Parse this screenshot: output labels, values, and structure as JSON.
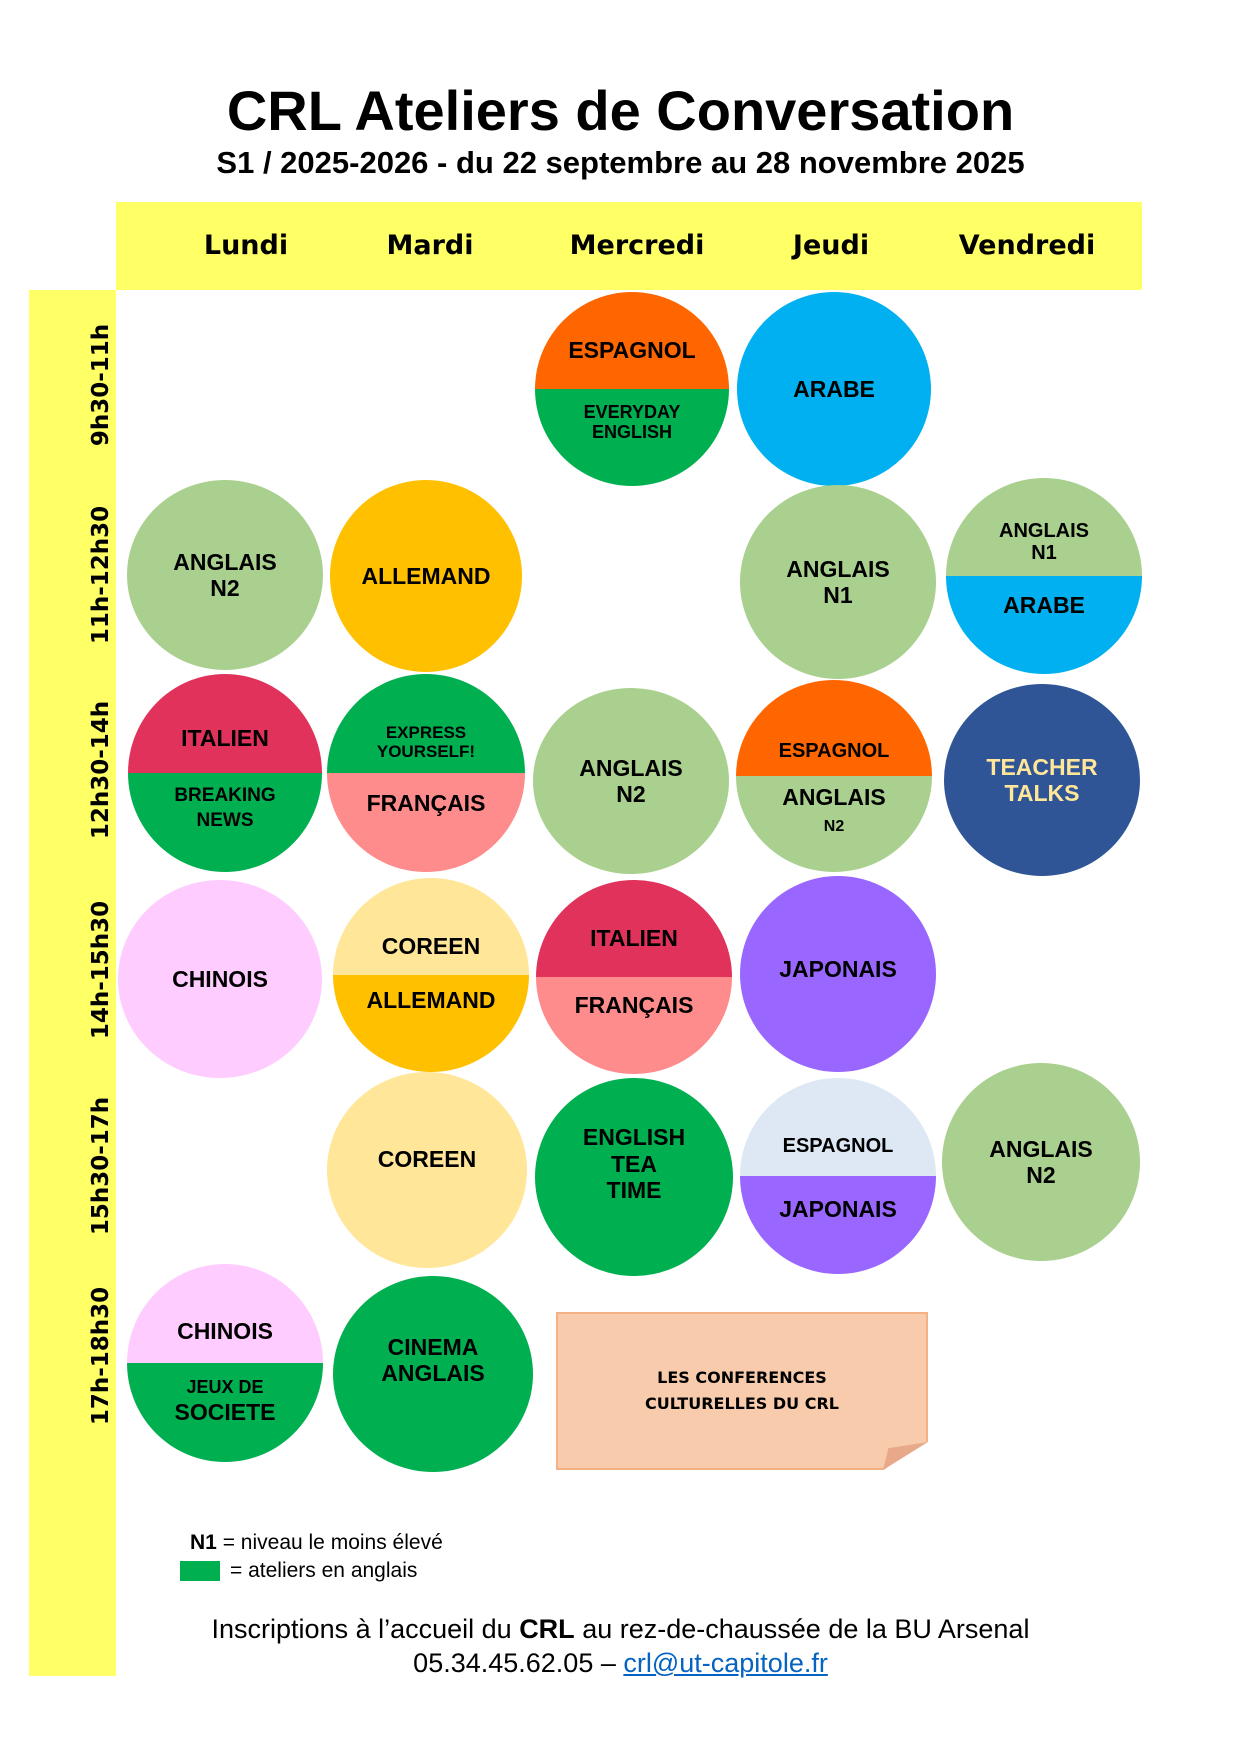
{
  "header": {
    "title": "CRL Ateliers de Conversation",
    "subtitle": "S1 / 2025-2026 - du 22 septembre au 28 novembre 2025"
  },
  "days": [
    "Lundi",
    "Mardi",
    "Mercredi",
    "Jeudi",
    "Vendredi"
  ],
  "time_slots": [
    "9h30-11h",
    "11h-12h30",
    "12h30-14h",
    "14h-15h30",
    "15h30-17h",
    "17h-18h30"
  ],
  "colors": {
    "highlight_yellow": "#ffff66",
    "anglais": "#a9d08e",
    "english_workshop": "#00b050",
    "espagnol": "#ff6600",
    "espagnol_light": "#dde8f4",
    "arabe": "#00b0f0",
    "allemand": "#ffc000",
    "italien": "#e0325a",
    "francais": "#ff8c8c",
    "chinois_fill": "#ffccff",
    "coreen": "#ffe699",
    "japonais": "#9966ff",
    "teacher_talks_fill": "#2f5597",
    "teacher_talks_text": "#ffe699",
    "note": "#f8cbad"
  },
  "schedule": [
    {
      "day": "Mercredi",
      "slot": "9h30-11h",
      "top": "ESPAGNOL",
      "bottom": "EVERYDAY\nENGLISH"
    },
    {
      "day": "Jeudi",
      "slot": "9h30-11h",
      "label": "ARABE"
    },
    {
      "day": "Lundi",
      "slot": "11h-12h30",
      "label": "ANGLAIS\nN2"
    },
    {
      "day": "Mardi",
      "slot": "11h-12h30",
      "label": "ALLEMAND"
    },
    {
      "day": "Jeudi",
      "slot": "11h-12h30",
      "label": "ANGLAIS\nN1"
    },
    {
      "day": "Vendredi",
      "slot": "11h-12h30",
      "top": "ANGLAIS\nN1",
      "bottom": "ARABE"
    },
    {
      "day": "Lundi",
      "slot": "12h30-14h",
      "top": "ITALIEN",
      "bottom": "BREAKING\nNEWS"
    },
    {
      "day": "Mardi",
      "slot": "12h30-14h",
      "top": "EXPRESS\nYOURSELF!",
      "bottom": "FRANÇAIS"
    },
    {
      "day": "Mercredi",
      "slot": "12h30-14h",
      "label": "ANGLAIS\nN2"
    },
    {
      "day": "Jeudi",
      "slot": "12h30-14h",
      "top": "ESPAGNOL",
      "bottom_main": "ANGLAIS",
      "bottom_sub": "N2"
    },
    {
      "day": "Vendredi",
      "slot": "12h30-14h",
      "label": "TEACHER\nTALKS"
    },
    {
      "day": "Lundi",
      "slot": "14h-15h30",
      "label": "CHINOIS"
    },
    {
      "day": "Mardi",
      "slot": "14h-15h30",
      "top": "COREEN",
      "bottom": "ALLEMAND"
    },
    {
      "day": "Mercredi",
      "slot": "14h-15h30",
      "top": "ITALIEN",
      "bottom": "FRANÇAIS"
    },
    {
      "day": "Jeudi",
      "slot": "14h-15h30",
      "label": "JAPONAIS"
    },
    {
      "day": "Mardi",
      "slot": "15h30-17h",
      "label": "COREEN"
    },
    {
      "day": "Mercredi",
      "slot": "15h30-17h",
      "label": "ENGLISH\nTEA\nTIME"
    },
    {
      "day": "Jeudi",
      "slot": "15h30-17h",
      "top": "ESPAGNOL",
      "bottom": "JAPONAIS"
    },
    {
      "day": "Vendredi",
      "slot": "15h30-17h",
      "label": "ANGLAIS\nN2"
    },
    {
      "day": "Lundi",
      "slot": "17h-18h30",
      "top": "CHINOIS",
      "bottom_sub_first": "JEUX DE",
      "bottom_main_second": "SOCIETE"
    },
    {
      "day": "Mardi",
      "slot": "17h-18h30",
      "label": "CINEMA\nANGLAIS"
    }
  ],
  "conferences_note": "LES CONFERENCES\nCULTURELLES DU CRL",
  "legend": {
    "n1_key": "N1",
    "n1_text": "= niveau le moins élevé",
    "green_text": "= ateliers en anglais"
  },
  "footer": {
    "line1_before": "Inscriptions à l’accueil du ",
    "line1_bold": "CRL",
    "line1_after": " au rez-de-chaussée de la BU Arsenal",
    "phone": "05.34.45.62.05 – ",
    "email": "crl@ut-capitole.fr"
  }
}
